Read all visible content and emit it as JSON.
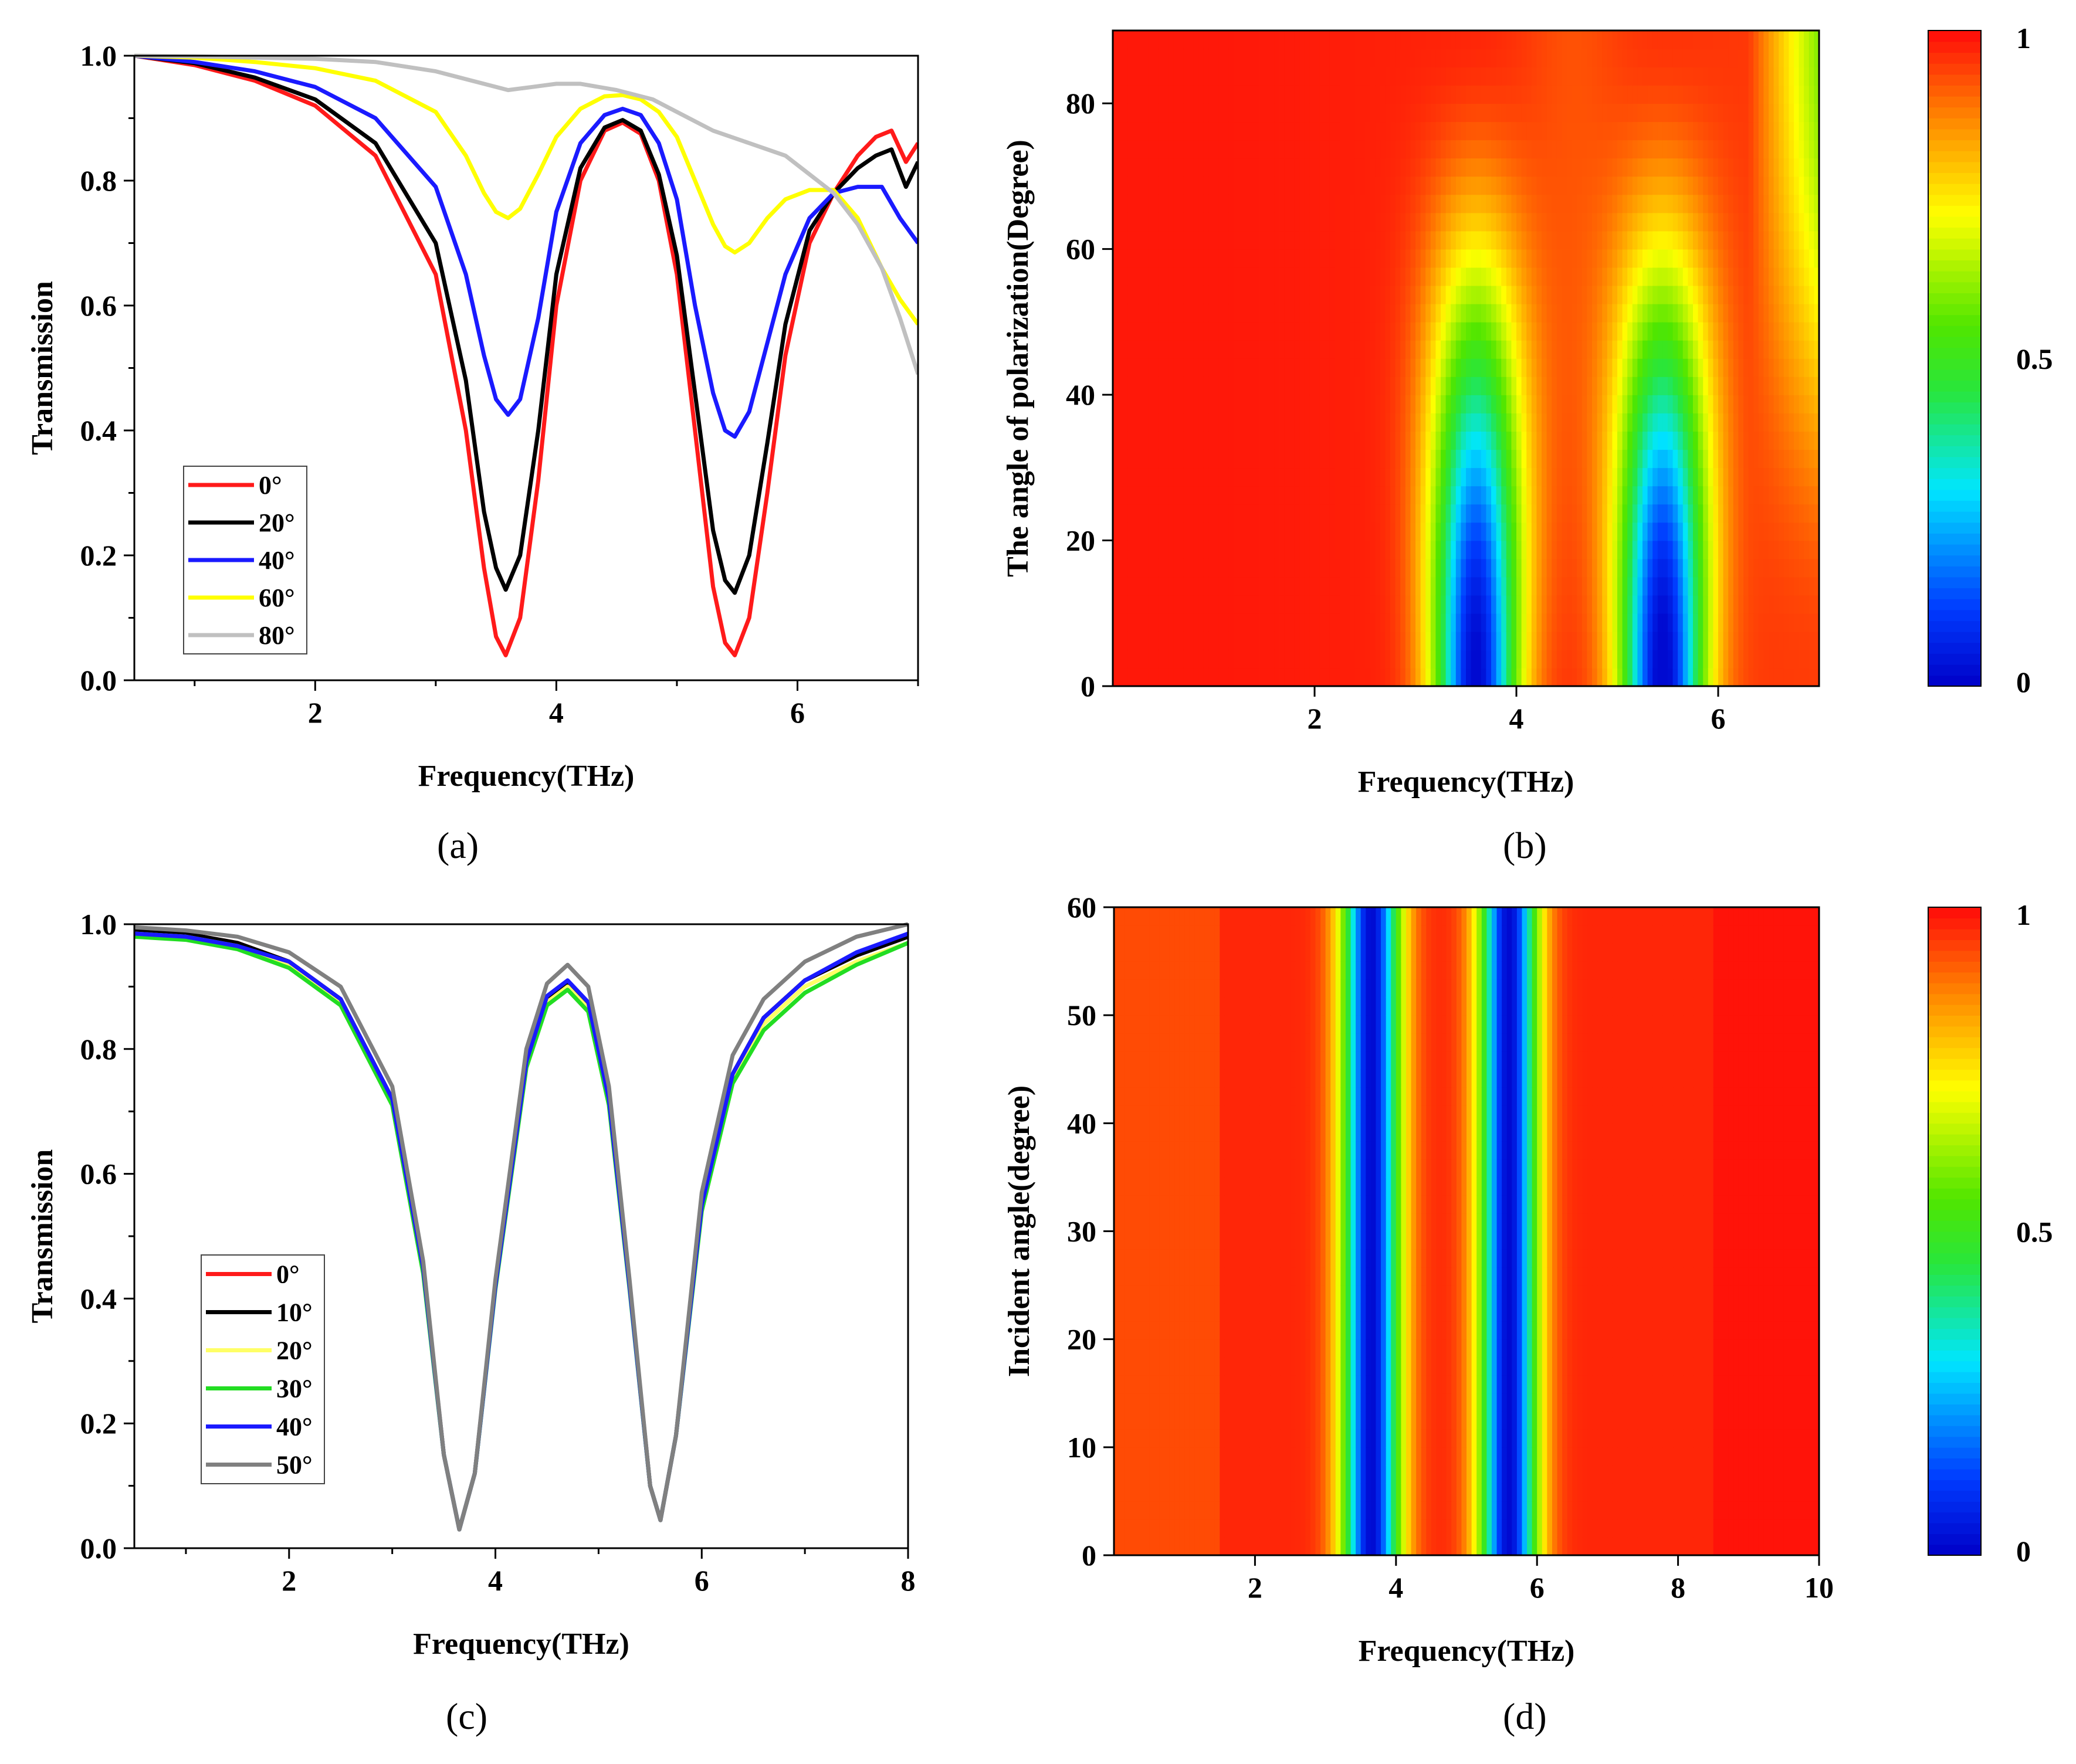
{
  "figure": {
    "captions": [
      "(a)",
      "(b)",
      "(c)",
      "(d)"
    ]
  },
  "chart_data": [
    {
      "id": "a",
      "type": "line",
      "xlabel": "Frequency(THz)",
      "ylabel": "Transmission",
      "xlim": [
        0.5,
        7.0
      ],
      "ylim": [
        0.0,
        1.0
      ],
      "xticks": [
        2,
        4,
        6
      ],
      "yticks": [
        0.0,
        0.2,
        0.4,
        0.6,
        0.8,
        1.0
      ],
      "ytick_labels": [
        "0.0",
        "0.2",
        "0.4",
        "0.6",
        "0.8",
        "1.0"
      ],
      "legend_position": "lower-left",
      "series": [
        {
          "name": "0°",
          "color": "#ff1a1a",
          "x": [
            0.5,
            1.0,
            1.5,
            2.0,
            2.5,
            3.0,
            3.25,
            3.4,
            3.5,
            3.58,
            3.7,
            3.85,
            4.0,
            4.2,
            4.4,
            4.55,
            4.7,
            4.85,
            5.0,
            5.15,
            5.3,
            5.4,
            5.48,
            5.6,
            5.75,
            5.9,
            6.1,
            6.3,
            6.5,
            6.65,
            6.78,
            6.9,
            7.0
          ],
          "y": [
            1.0,
            0.985,
            0.96,
            0.92,
            0.84,
            0.65,
            0.4,
            0.18,
            0.07,
            0.04,
            0.1,
            0.32,
            0.6,
            0.8,
            0.88,
            0.893,
            0.875,
            0.8,
            0.65,
            0.4,
            0.15,
            0.06,
            0.04,
            0.1,
            0.3,
            0.52,
            0.7,
            0.78,
            0.84,
            0.87,
            0.88,
            0.83,
            0.86
          ]
        },
        {
          "name": "20°",
          "color": "#000000",
          "x": [
            0.5,
            1.0,
            1.5,
            2.0,
            2.5,
            3.0,
            3.25,
            3.4,
            3.5,
            3.58,
            3.7,
            3.85,
            4.0,
            4.2,
            4.4,
            4.55,
            4.7,
            4.85,
            5.0,
            5.15,
            5.3,
            5.4,
            5.48,
            5.6,
            5.75,
            5.9,
            6.1,
            6.3,
            6.5,
            6.65,
            6.78,
            6.9,
            7.0
          ],
          "y": [
            1.0,
            0.988,
            0.965,
            0.93,
            0.86,
            0.7,
            0.48,
            0.27,
            0.18,
            0.145,
            0.2,
            0.4,
            0.65,
            0.82,
            0.885,
            0.897,
            0.88,
            0.81,
            0.68,
            0.46,
            0.24,
            0.16,
            0.14,
            0.2,
            0.38,
            0.57,
            0.72,
            0.78,
            0.82,
            0.84,
            0.85,
            0.79,
            0.83
          ]
        },
        {
          "name": "40°",
          "color": "#1a1aff",
          "x": [
            0.5,
            1.0,
            1.5,
            2.0,
            2.5,
            3.0,
            3.25,
            3.4,
            3.5,
            3.6,
            3.7,
            3.85,
            4.0,
            4.2,
            4.4,
            4.55,
            4.7,
            4.85,
            5.0,
            5.15,
            5.3,
            5.4,
            5.48,
            5.6,
            5.75,
            5.9,
            6.1,
            6.3,
            6.5,
            6.7,
            6.85,
            7.0
          ],
          "y": [
            1.0,
            0.99,
            0.975,
            0.95,
            0.9,
            0.79,
            0.65,
            0.52,
            0.45,
            0.425,
            0.45,
            0.58,
            0.75,
            0.86,
            0.905,
            0.915,
            0.905,
            0.86,
            0.77,
            0.6,
            0.46,
            0.4,
            0.39,
            0.43,
            0.54,
            0.65,
            0.74,
            0.78,
            0.79,
            0.79,
            0.74,
            0.7
          ]
        },
        {
          "name": "60°",
          "color": "#ffff00",
          "x": [
            0.5,
            1.0,
            1.5,
            2.0,
            2.5,
            3.0,
            3.25,
            3.4,
            3.5,
            3.6,
            3.7,
            3.85,
            4.0,
            4.2,
            4.4,
            4.55,
            4.7,
            4.85,
            5.0,
            5.15,
            5.3,
            5.4,
            5.48,
            5.6,
            5.75,
            5.9,
            6.1,
            6.3,
            6.5,
            6.7,
            6.85,
            7.0
          ],
          "y": [
            1.0,
            0.997,
            0.99,
            0.98,
            0.96,
            0.91,
            0.84,
            0.78,
            0.75,
            0.74,
            0.755,
            0.81,
            0.87,
            0.915,
            0.935,
            0.937,
            0.93,
            0.91,
            0.87,
            0.8,
            0.73,
            0.695,
            0.685,
            0.7,
            0.74,
            0.77,
            0.785,
            0.785,
            0.74,
            0.66,
            0.61,
            0.57
          ]
        },
        {
          "name": "80°",
          "color": "#c0c0c0",
          "x": [
            0.5,
            1.0,
            1.5,
            2.0,
            2.5,
            3.0,
            3.3,
            3.5,
            3.6,
            3.8,
            4.0,
            4.2,
            4.5,
            4.8,
            5.0,
            5.3,
            5.6,
            5.9,
            6.1,
            6.3,
            6.5,
            6.7,
            6.85,
            7.0
          ],
          "y": [
            1.0,
            0.999,
            0.997,
            0.995,
            0.99,
            0.975,
            0.96,
            0.95,
            0.945,
            0.95,
            0.955,
            0.955,
            0.945,
            0.93,
            0.91,
            0.88,
            0.86,
            0.84,
            0.81,
            0.78,
            0.73,
            0.66,
            0.58,
            0.49
          ]
        }
      ]
    },
    {
      "id": "b",
      "type": "heatmap",
      "xlabel": "Frequency(THz)",
      "ylabel": "The angle of polarization(Degree)",
      "xlim": [
        0.0,
        7.0
      ],
      "ylim": [
        0,
        90
      ],
      "xticks": [
        2,
        4,
        6
      ],
      "yticks": [
        0,
        20,
        40,
        60,
        80
      ],
      "colorbar_ticks": [
        "0",
        "0.5",
        "1"
      ],
      "colorbar_range": [
        0,
        1
      ],
      "dips": [
        {
          "center_freq": 3.6,
          "min_value_at_0deg": 0.04,
          "vanishes_near_deg": 80
        },
        {
          "center_freq": 5.45,
          "min_value_at_0deg": 0.04,
          "vanishes_near_deg": 80
        }
      ]
    },
    {
      "id": "c",
      "type": "line",
      "xlabel": "Frequency(THz)",
      "ylabel": "Transmission",
      "xlim": [
        0.5,
        8.0
      ],
      "ylim": [
        0.0,
        1.0
      ],
      "xticks": [
        2,
        4,
        6,
        8
      ],
      "yticks": [
        0.0,
        0.2,
        0.4,
        0.6,
        0.8,
        1.0
      ],
      "ytick_labels": [
        "0.0",
        "0.2",
        "0.4",
        "0.6",
        "0.8",
        "1.0"
      ],
      "legend_position": "lower-left",
      "series": [
        {
          "name": "0°",
          "color": "#ff1a1a",
          "x": [
            0.5,
            1.0,
            1.5,
            2.0,
            2.5,
            3.0,
            3.3,
            3.5,
            3.65,
            3.8,
            4.0,
            4.3,
            4.5,
            4.7,
            4.9,
            5.1,
            5.3,
            5.5,
            5.6,
            5.75,
            6.0,
            6.3,
            6.6,
            7.0,
            7.5,
            8.0
          ],
          "y": [
            0.99,
            0.985,
            0.97,
            0.94,
            0.88,
            0.72,
            0.45,
            0.15,
            0.03,
            0.12,
            0.42,
            0.78,
            0.88,
            0.905,
            0.87,
            0.72,
            0.42,
            0.1,
            0.045,
            0.18,
            0.55,
            0.76,
            0.85,
            0.91,
            0.95,
            0.98
          ]
        },
        {
          "name": "10°",
          "color": "#000000",
          "x": [
            0.5,
            1.0,
            1.5,
            2.0,
            2.5,
            3.0,
            3.3,
            3.5,
            3.65,
            3.8,
            4.0,
            4.3,
            4.5,
            4.7,
            4.9,
            5.1,
            5.3,
            5.5,
            5.6,
            5.75,
            6.0,
            6.3,
            6.6,
            7.0,
            7.5,
            8.0
          ],
          "y": [
            0.99,
            0.985,
            0.97,
            0.94,
            0.88,
            0.72,
            0.45,
            0.15,
            0.03,
            0.12,
            0.42,
            0.78,
            0.88,
            0.905,
            0.87,
            0.72,
            0.42,
            0.1,
            0.045,
            0.18,
            0.55,
            0.76,
            0.85,
            0.91,
            0.95,
            0.98
          ]
        },
        {
          "name": "20°",
          "color": "#ffff66",
          "x": [
            0.5,
            1.0,
            1.5,
            2.0,
            2.5,
            3.0,
            3.3,
            3.5,
            3.65,
            3.8,
            4.0,
            4.3,
            4.5,
            4.7,
            4.9,
            5.1,
            5.3,
            5.5,
            5.6,
            5.75,
            6.0,
            6.3,
            6.6,
            7.0,
            7.5,
            8.0
          ],
          "y": [
            0.985,
            0.98,
            0.965,
            0.935,
            0.875,
            0.715,
            0.445,
            0.15,
            0.03,
            0.12,
            0.42,
            0.775,
            0.875,
            0.9,
            0.865,
            0.715,
            0.42,
            0.1,
            0.045,
            0.18,
            0.545,
            0.75,
            0.84,
            0.9,
            0.94,
            0.97
          ]
        },
        {
          "name": "30°",
          "color": "#22dd22",
          "x": [
            0.5,
            1.0,
            1.5,
            2.0,
            2.5,
            3.0,
            3.3,
            3.5,
            3.65,
            3.8,
            4.0,
            4.3,
            4.5,
            4.7,
            4.9,
            5.1,
            5.3,
            5.5,
            5.6,
            5.75,
            6.0,
            6.3,
            6.6,
            7.0,
            7.5,
            8.0
          ],
          "y": [
            0.98,
            0.975,
            0.96,
            0.93,
            0.87,
            0.71,
            0.44,
            0.15,
            0.03,
            0.12,
            0.415,
            0.77,
            0.87,
            0.895,
            0.86,
            0.71,
            0.415,
            0.1,
            0.045,
            0.18,
            0.54,
            0.745,
            0.83,
            0.89,
            0.935,
            0.97
          ]
        },
        {
          "name": "40°",
          "color": "#1a1aff",
          "x": [
            0.5,
            1.0,
            1.5,
            2.0,
            2.5,
            3.0,
            3.3,
            3.5,
            3.65,
            3.8,
            4.0,
            4.3,
            4.5,
            4.7,
            4.9,
            5.1,
            5.3,
            5.5,
            5.6,
            5.75,
            6.0,
            6.3,
            6.6,
            7.0,
            7.5,
            8.0
          ],
          "y": [
            0.985,
            0.98,
            0.965,
            0.94,
            0.88,
            0.72,
            0.45,
            0.15,
            0.03,
            0.12,
            0.42,
            0.78,
            0.885,
            0.91,
            0.875,
            0.72,
            0.42,
            0.1,
            0.045,
            0.18,
            0.55,
            0.76,
            0.85,
            0.91,
            0.955,
            0.985
          ]
        },
        {
          "name": "50°",
          "color": "#808080",
          "x": [
            0.5,
            1.0,
            1.5,
            2.0,
            2.5,
            3.0,
            3.3,
            3.5,
            3.65,
            3.8,
            4.0,
            4.3,
            4.5,
            4.7,
            4.9,
            5.1,
            5.3,
            5.5,
            5.6,
            5.75,
            6.0,
            6.3,
            6.6,
            7.0,
            7.5,
            8.0
          ],
          "y": [
            0.995,
            0.99,
            0.98,
            0.955,
            0.9,
            0.74,
            0.46,
            0.15,
            0.03,
            0.12,
            0.43,
            0.8,
            0.905,
            0.935,
            0.9,
            0.74,
            0.43,
            0.1,
            0.045,
            0.18,
            0.57,
            0.79,
            0.88,
            0.94,
            0.98,
            1.0
          ]
        }
      ]
    },
    {
      "id": "d",
      "type": "heatmap",
      "xlabel": "Frequency(THz)",
      "ylabel": "Incident angle(degree)",
      "xlim": [
        0.0,
        10.0
      ],
      "ylim": [
        0,
        60
      ],
      "xticks": [
        2,
        4,
        6,
        8,
        10
      ],
      "yticks": [
        0,
        10,
        20,
        30,
        40,
        50,
        60
      ],
      "colorbar_ticks": [
        "0",
        "0.5",
        "1"
      ],
      "colorbar_range": [
        0,
        1
      ],
      "dips": [
        {
          "center_freq": 3.65,
          "min_value": 0.03
        },
        {
          "center_freq": 5.6,
          "min_value": 0.045
        }
      ]
    }
  ]
}
